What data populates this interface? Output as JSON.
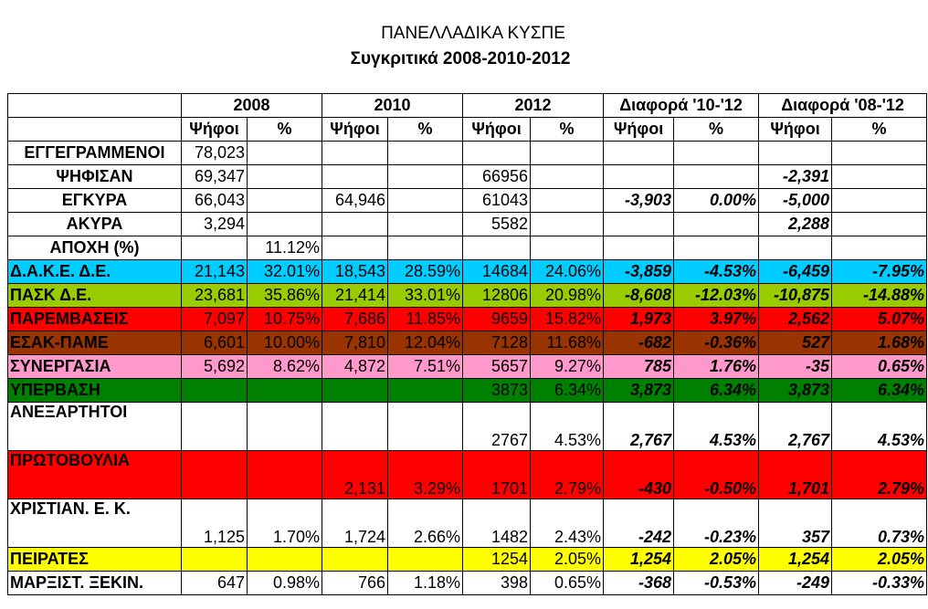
{
  "title": "ΠΑΝΕΛΛΑΔΙΚΑ ΚΥΣΠΕ",
  "subtitle": "Συγκριτικά 2008-2010-2012",
  "groups": [
    "2008",
    "2010",
    "2012",
    "Διαφορά '10-'12",
    "Διαφορά '08-'12"
  ],
  "subheaders": [
    "Ψήφοι",
    "%",
    "Ψήφοι",
    "%",
    "Ψήφοι",
    "%",
    "Ψήφοι",
    "%",
    "Ψήφοι",
    "%"
  ],
  "rows": [
    {
      "label": "ΕΓΓΕΓΡΑΜΜΕΝΟΙ",
      "align": "center",
      "bg": "#ffffff",
      "tall": false,
      "cells": [
        "78,023",
        "",
        "",
        "",
        "",
        "",
        "",
        "",
        "",
        ""
      ]
    },
    {
      "label": "ΨΗΦΙΣΑΝ",
      "align": "center",
      "bg": "#ffffff",
      "tall": false,
      "cells": [
        "69,347",
        "",
        "",
        "",
        "66956",
        "",
        "",
        "",
        "-2,391",
        ""
      ]
    },
    {
      "label": "ΕΓΚΥΡΑ",
      "align": "center",
      "bg": "#ffffff",
      "tall": false,
      "cells": [
        "66,043",
        "",
        "64,946",
        "",
        "61043",
        "",
        "-3,903",
        "0.00%",
        "-5,000",
        ""
      ]
    },
    {
      "label": "ΑΚΥΡΑ",
      "align": "center",
      "bg": "#ffffff",
      "tall": false,
      "cells": [
        "3,294",
        "",
        "",
        "",
        "5582",
        "",
        "",
        "",
        "2,288",
        ""
      ]
    },
    {
      "label": "ΑΠΟΧΗ (%)",
      "align": "center",
      "bg": "#ffffff",
      "tall": false,
      "cells": [
        "",
        "11.12%",
        "",
        "",
        "",
        "",
        "",
        "",
        "",
        ""
      ]
    },
    {
      "label": "Δ.Α.Κ.Ε. Δ.Ε.",
      "align": "left",
      "bg": "#00ccff",
      "tall": false,
      "cells": [
        "21,143",
        "32.01%",
        "18,543",
        "28.59%",
        "14684",
        "24.06%",
        "-3,859",
        "-4.53%",
        "-6,459",
        "-7.95%"
      ]
    },
    {
      "label": "ΠΑΣΚ Δ.Ε.",
      "align": "left",
      "bg": "#99cc00",
      "tall": false,
      "cells": [
        "23,681",
        "35.86%",
        "21,414",
        "33.01%",
        "12806",
        "20.98%",
        "-8,608",
        "-12.03%",
        "-10,875",
        "-14.88%"
      ]
    },
    {
      "label": "ΠΑΡΕΜΒΑΣΕΙΣ",
      "align": "left",
      "bg": "#ff0000",
      "tall": false,
      "cells": [
        "7,097",
        "10.75%",
        "7,686",
        "11.85%",
        "9659",
        "15.82%",
        "1,973",
        "3.97%",
        "2,562",
        "5.07%"
      ]
    },
    {
      "label": "ΕΣΑΚ-ΠΑΜΕ",
      "align": "left",
      "bg": "#993300",
      "tall": false,
      "cells": [
        "6,601",
        "10.00%",
        "7,810",
        "12.04%",
        "7128",
        "11.68%",
        "-682",
        "-0.36%",
        "527",
        "1.68%"
      ]
    },
    {
      "label": "ΣΥΝΕΡΓΑΣΙΑ",
      "align": "left",
      "bg": "#ff99cc",
      "tall": false,
      "cells": [
        "5,692",
        "8.62%",
        "4,872",
        "7.51%",
        "5657",
        "9.27%",
        "785",
        "1.76%",
        "-35",
        "0.65%"
      ]
    },
    {
      "label": "ΥΠΕΡΒΑΣΗ",
      "align": "left",
      "bg": "#008000",
      "tall": false,
      "cells": [
        "",
        "",
        "",
        "",
        "3873",
        "6.34%",
        "3,873",
        "6.34%",
        "3,873",
        "6.34%"
      ]
    },
    {
      "label": "ΑΝΕΞΑΡΤΗΤΟΙ",
      "align": "left",
      "bg": "#ffffff",
      "tall": true,
      "cells": [
        "",
        "",
        "",
        "",
        "2767",
        "4.53%",
        "2,767",
        "4.53%",
        "2,767",
        "4.53%"
      ]
    },
    {
      "label": "ΠΡΩΤΟΒΟΥΛΙΑ",
      "align": "left",
      "bg": "#ff0000",
      "tall": true,
      "cells": [
        "",
        "",
        "2,131",
        "3.29%",
        "1701",
        "2.79%",
        "-430",
        "-0.50%",
        "1,701",
        "2.79%"
      ]
    },
    {
      "label": "ΧΡΙΣΤΙΑΝ. Ε. Κ.",
      "align": "left",
      "bg": "#ffffff",
      "tall": true,
      "cells": [
        "1,125",
        "1.70%",
        "1,724",
        "2.66%",
        "1482",
        "2.43%",
        "-242",
        "-0.23%",
        "357",
        "0.73%"
      ]
    },
    {
      "label": "ΠΕΙΡΑΤΕΣ",
      "align": "left",
      "bg": "#ffff00",
      "tall": false,
      "cells": [
        "",
        "",
        "",
        "",
        "1254",
        "2.05%",
        "1,254",
        "2.05%",
        "1,254",
        "2.05%"
      ]
    },
    {
      "label": "ΜΑΡΞΙΣΤ. ΞΕΚΙΝ.",
      "align": "left",
      "bg": "#ffffff",
      "tall": false,
      "cells": [
        "647",
        "0.98%",
        "766",
        "1.18%",
        "398",
        "0.65%",
        "-368",
        "-0.53%",
        "-249",
        "-0.33%"
      ]
    }
  ]
}
